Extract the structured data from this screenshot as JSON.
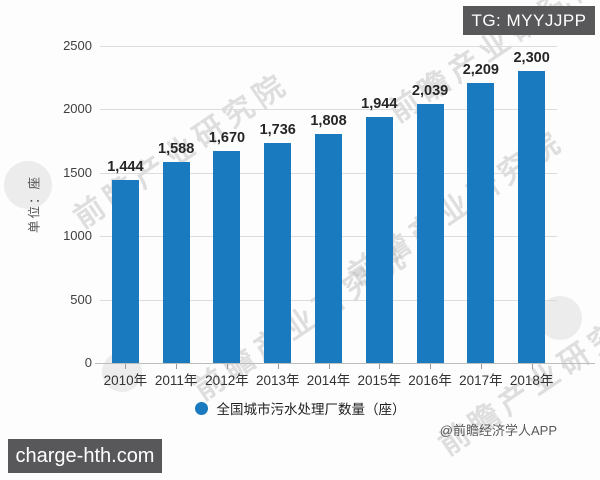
{
  "overlays": {
    "tg_badge": "TG: MYYJJPP",
    "site_badge": "charge-hth.com",
    "attribution": "@前瞻经济学人APP",
    "diagonal_watermark": "前瞻产业研究院"
  },
  "chart_data": {
    "type": "bar",
    "title": "",
    "legend": "全国城市污水处理厂数量（座）",
    "ylabel": "单位：座",
    "categories": [
      "2010年",
      "2011年",
      "2012年",
      "2013年",
      "2014年",
      "2015年",
      "2016年",
      "2017年",
      "2018年"
    ],
    "values": [
      1444,
      1588,
      1670,
      1736,
      1808,
      1944,
      2039,
      2209,
      2300
    ],
    "value_labels": [
      "1,444",
      "1,588",
      "1,670",
      "1,736",
      "1,808",
      "1,944",
      "2,039",
      "2,209",
      "2,300"
    ],
    "yticks": [
      0,
      500,
      1000,
      1500,
      2000,
      2500
    ],
    "ylim": [
      0,
      2500
    ],
    "grid": true,
    "legend_position": "bottom",
    "bar_color": "#1a7abf",
    "accent_color": "#1a7abf",
    "badge_color": "#58585a"
  }
}
